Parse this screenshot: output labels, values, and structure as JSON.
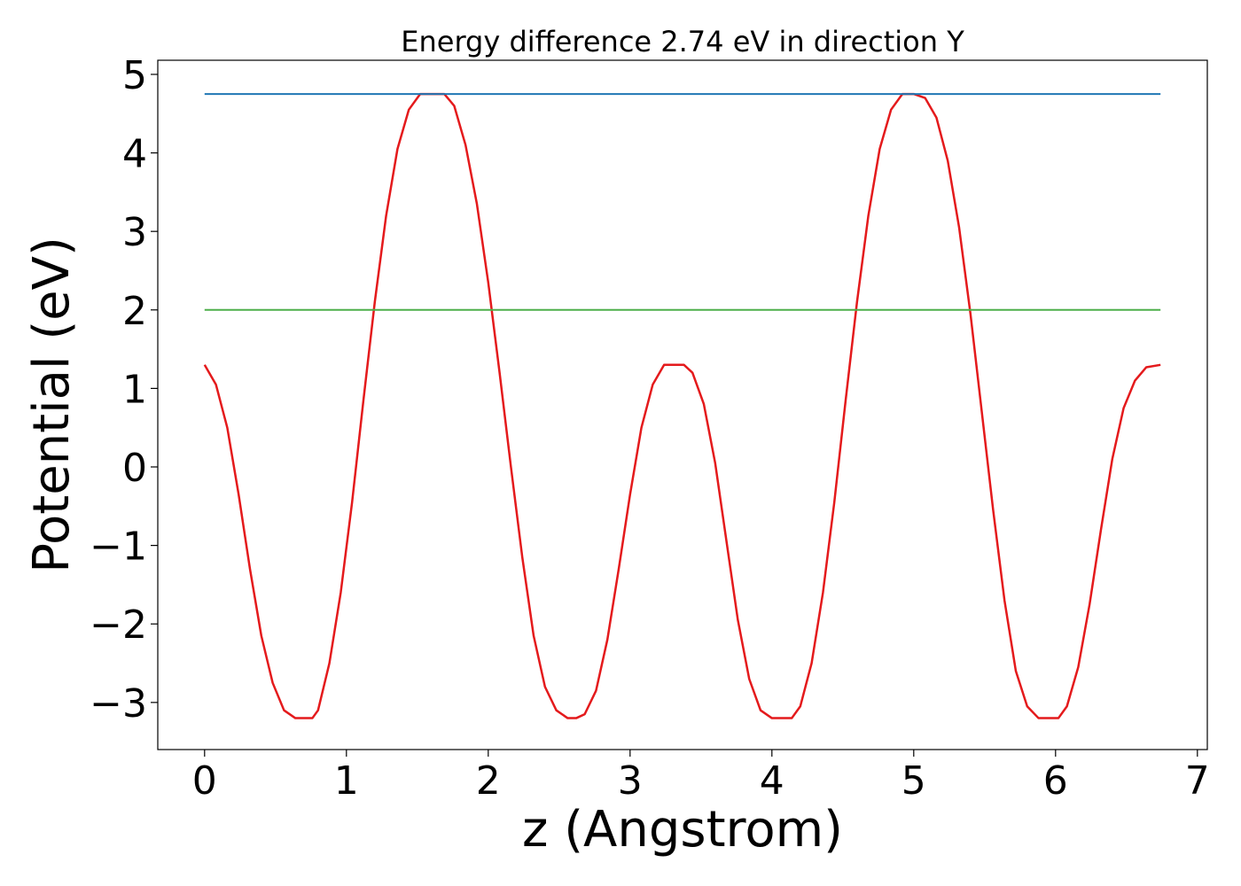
{
  "chart_data": {
    "type": "line",
    "title": "Energy difference 2.74 eV in direction Y",
    "xlabel": "z (Angstrom)",
    "ylabel": "Potential (eV)",
    "xlim": [
      -0.33,
      7.07
    ],
    "ylim": [
      -3.6,
      5.18
    ],
    "xticks": [
      0,
      1,
      2,
      3,
      4,
      5,
      6,
      7
    ],
    "yticks": [
      -3,
      -2,
      -1,
      0,
      1,
      2,
      3,
      4,
      5
    ],
    "xtick_labels": [
      "0",
      "1",
      "2",
      "3",
      "4",
      "5",
      "6",
      "7"
    ],
    "ytick_labels": [
      "−3",
      "−2",
      "−1",
      "0",
      "1",
      "2",
      "3",
      "4",
      "5"
    ],
    "grid": false,
    "series": [
      {
        "color": "#e41a1c",
        "line_width": 2.5,
        "x": [
          0.0,
          0.08,
          0.16,
          0.24,
          0.32,
          0.4,
          0.48,
          0.56,
          0.64,
          0.72,
          0.76,
          0.8,
          0.88,
          0.96,
          1.04,
          1.12,
          1.2,
          1.28,
          1.36,
          1.44,
          1.52,
          1.6,
          1.69,
          1.76,
          1.84,
          1.92,
          2.0,
          2.08,
          2.16,
          2.24,
          2.32,
          2.4,
          2.48,
          2.56,
          2.62,
          2.68,
          2.76,
          2.84,
          2.92,
          3.0,
          3.08,
          3.16,
          3.24,
          3.32,
          3.38,
          3.44,
          3.52,
          3.6,
          3.68,
          3.76,
          3.84,
          3.92,
          4.0,
          4.08,
          4.14,
          4.2,
          4.28,
          4.36,
          4.44,
          4.52,
          4.6,
          4.68,
          4.76,
          4.84,
          4.92,
          5.0,
          5.08,
          5.16,
          5.24,
          5.32,
          5.4,
          5.48,
          5.56,
          5.64,
          5.72,
          5.8,
          5.88,
          5.96,
          6.02,
          6.08,
          6.16,
          6.24,
          6.32,
          6.4,
          6.48,
          6.56,
          6.64,
          6.74
        ],
        "y": [
          1.3,
          1.05,
          0.5,
          -0.35,
          -1.3,
          -2.15,
          -2.75,
          -3.1,
          -3.2,
          -3.2,
          -3.2,
          -3.1,
          -2.5,
          -1.6,
          -0.45,
          0.85,
          2.1,
          3.2,
          4.05,
          4.55,
          4.75,
          4.75,
          4.75,
          4.6,
          4.1,
          3.35,
          2.35,
          1.2,
          0.0,
          -1.15,
          -2.15,
          -2.8,
          -3.1,
          -3.2,
          -3.2,
          -3.15,
          -2.85,
          -2.2,
          -1.3,
          -0.35,
          0.5,
          1.05,
          1.3,
          1.3,
          1.3,
          1.2,
          0.8,
          0.05,
          -0.95,
          -1.95,
          -2.7,
          -3.1,
          -3.2,
          -3.2,
          -3.2,
          -3.05,
          -2.5,
          -1.6,
          -0.45,
          0.85,
          2.1,
          3.2,
          4.05,
          4.55,
          4.75,
          4.75,
          4.7,
          4.45,
          3.9,
          3.05,
          1.95,
          0.7,
          -0.55,
          -1.7,
          -2.6,
          -3.05,
          -3.2,
          -3.2,
          -3.2,
          -3.05,
          -2.55,
          -1.75,
          -0.8,
          0.1,
          0.75,
          1.1,
          1.27,
          1.3
        ]
      },
      {
        "color": "#1f77b4",
        "line_width": 2,
        "x": [
          0.0,
          6.74
        ],
        "y": [
          4.75,
          4.75
        ]
      },
      {
        "color": "#4daf4a",
        "line_width": 2,
        "x": [
          0.0,
          6.74
        ],
        "y": [
          2.0,
          2.0
        ]
      }
    ]
  }
}
